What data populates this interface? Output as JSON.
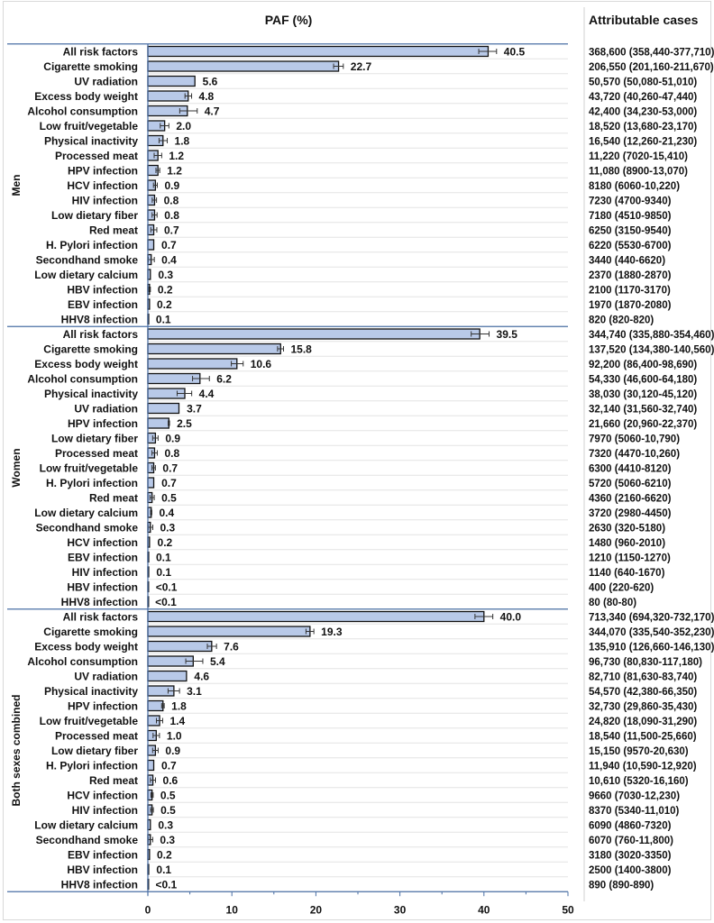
{
  "chart_data": {
    "type": "bar",
    "orientation": "horizontal",
    "title": "PAF (%)",
    "cases_header": "Attributable cases",
    "xlim": [
      0,
      50
    ],
    "xticks": [
      0,
      10,
      20,
      30,
      40,
      50
    ],
    "grid": "horizontal row separators",
    "bar_color": "#b8c9e8",
    "groups": [
      {
        "name": "Men",
        "rows": [
          {
            "label": "All risk factors",
            "value": 40.5,
            "value_label": "40.5",
            "cases": "368,600 (358,440-377,710)"
          },
          {
            "label": "Cigarette smoking",
            "value": 22.7,
            "value_label": "22.7",
            "cases": "206,550 (201,160-211,670)"
          },
          {
            "label": "UV radiation",
            "value": 5.6,
            "value_label": "5.6",
            "cases": "50,570 (50,080-51,010)"
          },
          {
            "label": "Excess body weight",
            "value": 4.8,
            "value_label": "4.8",
            "cases": "43,720 (40,260-47,440)"
          },
          {
            "label": "Alcohol consumption",
            "value": 4.7,
            "value_label": "4.7",
            "cases": "42,400 (34,230-53,000)"
          },
          {
            "label": "Low fruit/vegetable",
            "value": 2.0,
            "value_label": "2.0",
            "cases": "18,520 (13,680-23,170)"
          },
          {
            "label": "Physical inactivity",
            "value": 1.8,
            "value_label": "1.8",
            "cases": "16,540 (12,260-21,230)"
          },
          {
            "label": "Processed meat",
            "value": 1.2,
            "value_label": "1.2",
            "cases": "11,220 (7020-15,410)"
          },
          {
            "label": "HPV infection",
            "value": 1.2,
            "value_label": "1.2",
            "cases": "11,080 (8900-13,070)"
          },
          {
            "label": "HCV infection",
            "value": 0.9,
            "value_label": "0.9",
            "cases": "8180 (6060-10,220)"
          },
          {
            "label": "HIV infection",
            "value": 0.8,
            "value_label": "0.8",
            "cases": "7230 (4700-9340)"
          },
          {
            "label": "Low dietary fiber",
            "value": 0.8,
            "value_label": "0.8",
            "cases": "7180 (4510-9850)"
          },
          {
            "label": "Red meat",
            "value": 0.7,
            "value_label": "0.7",
            "cases": "6250 (3150-9540)"
          },
          {
            "label": "H. Pylori infection",
            "value": 0.7,
            "value_label": "0.7",
            "cases": "6220 (5530-6700)"
          },
          {
            "label": "Secondhand smoke",
            "value": 0.4,
            "value_label": "0.4",
            "cases": "3440 (440-6620)"
          },
          {
            "label": "Low dietary calcium",
            "value": 0.3,
            "value_label": "0.3",
            "cases": "2370 (1880-2870)"
          },
          {
            "label": "HBV infection",
            "value": 0.2,
            "value_label": "0.2",
            "cases": "2100 (1170-3170)"
          },
          {
            "label": "EBV infection",
            "value": 0.2,
            "value_label": "0.2",
            "cases": "1970 (1870-2080)"
          },
          {
            "label": "HHV8 infection",
            "value": 0.1,
            "value_label": "0.1",
            "cases": "820 (820-820)"
          }
        ]
      },
      {
        "name": "Women",
        "rows": [
          {
            "label": "All risk factors",
            "value": 39.5,
            "value_label": "39.5",
            "cases": "344,740 (335,880-354,460)"
          },
          {
            "label": "Cigarette smoking",
            "value": 15.8,
            "value_label": "15.8",
            "cases": "137,520 (134,380-140,560)"
          },
          {
            "label": "Excess body weight",
            "value": 10.6,
            "value_label": "10.6",
            "cases": "92,200 (86,400-98,690)"
          },
          {
            "label": "Alcohol consumption",
            "value": 6.2,
            "value_label": "6.2",
            "cases": "54,330 (46,600-64,180)"
          },
          {
            "label": "Physical inactivity",
            "value": 4.4,
            "value_label": "4.4",
            "cases": "38,030 (30,120-45,120)"
          },
          {
            "label": "UV radiation",
            "value": 3.7,
            "value_label": "3.7",
            "cases": "32,140 (31,560-32,740)"
          },
          {
            "label": "HPV infection",
            "value": 2.5,
            "value_label": "2.5",
            "cases": "21,660 (20,960-22,370)"
          },
          {
            "label": "Low dietary fiber",
            "value": 0.9,
            "value_label": "0.9",
            "cases": "7970 (5060-10,790)"
          },
          {
            "label": "Processed meat",
            "value": 0.8,
            "value_label": "0.8",
            "cases": "7320 (4470-10,260)"
          },
          {
            "label": "Low fruit/vegetable",
            "value": 0.7,
            "value_label": "0.7",
            "cases": "6300 (4410-8120)"
          },
          {
            "label": "H. Pylori infection",
            "value": 0.7,
            "value_label": "0.7",
            "cases": "5720 (5060-6210)"
          },
          {
            "label": "Red meat",
            "value": 0.5,
            "value_label": "0.5",
            "cases": "4360 (2160-6620)"
          },
          {
            "label": "Low dietary calcium",
            "value": 0.4,
            "value_label": "0.4",
            "cases": "3720 (2980-4450)"
          },
          {
            "label": "Secondhand smoke",
            "value": 0.3,
            "value_label": "0.3",
            "cases": "2630 (320-5180)"
          },
          {
            "label": "HCV infection",
            "value": 0.2,
            "value_label": "0.2",
            "cases": "1480 (960-2010)"
          },
          {
            "label": "EBV infection",
            "value": 0.1,
            "value_label": "0.1",
            "cases": "1210 (1150-1270)"
          },
          {
            "label": "HIV infection",
            "value": 0.1,
            "value_label": "0.1",
            "cases": "1140 (640-1670)"
          },
          {
            "label": "HBV infection",
            "value": 0.05,
            "value_label": "<0.1",
            "cases": "400 (220-620)"
          },
          {
            "label": "HHV8 infection",
            "value": 0.01,
            "value_label": "<0.1",
            "cases": "80 (80-80)"
          }
        ]
      },
      {
        "name": "Both sexes combined",
        "rows": [
          {
            "label": "All risk factors",
            "value": 40.0,
            "value_label": "40.0",
            "cases": "713,340 (694,320-732,170)"
          },
          {
            "label": "Cigarette smoking",
            "value": 19.3,
            "value_label": "19.3",
            "cases": "344,070 (335,540-352,230)"
          },
          {
            "label": "Excess body weight",
            "value": 7.6,
            "value_label": "7.6",
            "cases": "135,910 (126,660-146,130)"
          },
          {
            "label": "Alcohol consumption",
            "value": 5.4,
            "value_label": "5.4",
            "cases": "96,730 (80,830-117,180)"
          },
          {
            "label": "UV radiation",
            "value": 4.6,
            "value_label": "4.6",
            "cases": "82,710 (81,630-83,740)"
          },
          {
            "label": "Physical inactivity",
            "value": 3.1,
            "value_label": "3.1",
            "cases": "54,570 (42,380-66,350)"
          },
          {
            "label": "HPV infection",
            "value": 1.8,
            "value_label": "1.8",
            "cases": "32,730 (29,860-35,430)"
          },
          {
            "label": "Low fruit/vegetable",
            "value": 1.4,
            "value_label": "1.4",
            "cases": "24,820 (18,090-31,290)"
          },
          {
            "label": "Processed meat",
            "value": 1.0,
            "value_label": "1.0",
            "cases": "18,540 (11,500-25,660)"
          },
          {
            "label": "Low dietary fiber",
            "value": 0.9,
            "value_label": "0.9",
            "cases": "15,150 (9570-20,630)"
          },
          {
            "label": "H. Pylori infection",
            "value": 0.7,
            "value_label": "0.7",
            "cases": "11,940 (10,590-12,920)"
          },
          {
            "label": "Red meat",
            "value": 0.6,
            "value_label": "0.6",
            "cases": "10,610 (5320-16,160)"
          },
          {
            "label": "HCV infection",
            "value": 0.5,
            "value_label": "0.5",
            "cases": "9660 (7030-12,230)"
          },
          {
            "label": "HIV infection",
            "value": 0.5,
            "value_label": "0.5",
            "cases": "8370 (5340-11,010)"
          },
          {
            "label": "Low dietary calcium",
            "value": 0.3,
            "value_label": "0.3",
            "cases": "6090 (4860-7320)"
          },
          {
            "label": "Secondhand smoke",
            "value": 0.3,
            "value_label": "0.3",
            "cases": "6070 (760-11,800)"
          },
          {
            "label": "EBV infection",
            "value": 0.2,
            "value_label": "0.2",
            "cases": "3180 (3020-3350)"
          },
          {
            "label": "HBV infection",
            "value": 0.1,
            "value_label": "0.1",
            "cases": "2500 (1400-3800)"
          },
          {
            "label": "HHV8 infection",
            "value": 0.05,
            "value_label": "<0.1",
            "cases": "890 (890-890)"
          }
        ]
      }
    ]
  }
}
